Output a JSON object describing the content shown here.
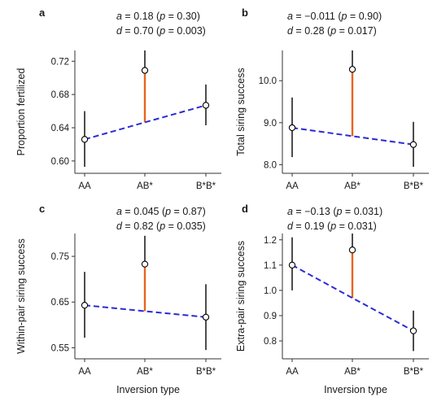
{
  "chart_data": [
    {
      "panel": "a",
      "type": "scatter",
      "stat_a": {
        "label": "a",
        "value": "0.18",
        "p": "0.30"
      },
      "stat_d": {
        "label": "d",
        "value": "0.70",
        "p": "0.003"
      },
      "ylabel": "Proportion fertilized",
      "xlabel": "",
      "categories": [
        "AA",
        "AB*",
        "B*B*"
      ],
      "yticks": [
        "0.60",
        "0.64",
        "0.68",
        "0.72"
      ],
      "ytick_values": [
        0.6,
        0.64,
        0.68,
        0.72
      ],
      "ylim": [
        0.593,
        0.733
      ],
      "points": [
        {
          "category": "AA",
          "mean": 0.626,
          "lo": 0.593,
          "hi": 0.66
        },
        {
          "category": "AB*",
          "mean": 0.709,
          "lo": 0.688,
          "hi": 0.733
        },
        {
          "category": "B*B*",
          "mean": 0.667,
          "lo": 0.643,
          "hi": 0.692
        }
      ],
      "additive_line": [
        0.626,
        0.6465,
        0.667
      ]
    },
    {
      "panel": "b",
      "type": "scatter",
      "stat_a": {
        "label": "a",
        "value": "−0.011",
        "p": "0.90"
      },
      "stat_d": {
        "label": "d",
        "value": "0.28",
        "p": "0.017"
      },
      "ylabel": "Total siring success",
      "xlabel": "",
      "categories": [
        "AA",
        "AB*",
        "B*B*"
      ],
      "yticks": [
        "8.0",
        "9.0",
        "10.0"
      ],
      "ytick_values": [
        8.0,
        9.0,
        10.0
      ],
      "ylim": [
        7.95,
        10.72
      ],
      "points": [
        {
          "category": "AA",
          "mean": 8.88,
          "lo": 8.18,
          "hi": 9.6
        },
        {
          "category": "AB*",
          "mean": 10.27,
          "lo": 9.83,
          "hi": 10.72
        },
        {
          "category": "B*B*",
          "mean": 8.48,
          "lo": 7.95,
          "hi": 9.02
        }
      ],
      "additive_line": [
        8.88,
        8.68,
        8.48
      ]
    },
    {
      "panel": "c",
      "type": "scatter",
      "stat_a": {
        "label": "a",
        "value": "0.045",
        "p": "0.87"
      },
      "stat_d": {
        "label": "d",
        "value": "0.82",
        "p": "0.035"
      },
      "ylabel": "Within-pair siring success",
      "xlabel": "Inversion type",
      "categories": [
        "AA",
        "AB*",
        "B*B*"
      ],
      "yticks": [
        "0.55",
        "0.65",
        "0.75"
      ],
      "ytick_values": [
        0.55,
        0.65,
        0.75
      ],
      "ylim": [
        0.54,
        0.8
      ],
      "points": [
        {
          "category": "AA",
          "mean": 0.643,
          "lo": 0.572,
          "hi": 0.716
        },
        {
          "category": "AB*",
          "mean": 0.733,
          "lo": 0.683,
          "hi": 0.795
        },
        {
          "category": "B*B*",
          "mean": 0.617,
          "lo": 0.545,
          "hi": 0.689
        }
      ],
      "additive_line": [
        0.643,
        0.63,
        0.617
      ]
    },
    {
      "panel": "d",
      "type": "scatter",
      "stat_a": {
        "label": "a",
        "value": "−0.13",
        "p": "0.031"
      },
      "stat_d": {
        "label": "d",
        "value": "0.19",
        "p": "0.031"
      },
      "ylabel": "Extra-pair siring success",
      "xlabel": "Inversion type",
      "categories": [
        "AA",
        "AB*",
        "B*B*"
      ],
      "yticks": [
        "0.8",
        "0.9",
        "1.0",
        "1.1",
        "1.2"
      ],
      "ytick_values": [
        0.8,
        0.9,
        1.0,
        1.1,
        1.2
      ],
      "ylim": [
        0.755,
        1.225
      ],
      "points": [
        {
          "category": "AA",
          "mean": 1.1,
          "lo": 1.0,
          "hi": 1.21
        },
        {
          "category": "AB*",
          "mean": 1.16,
          "lo": 1.08,
          "hi": 1.225
        },
        {
          "category": "B*B*",
          "mean": 0.84,
          "lo": 0.76,
          "hi": 0.92
        }
      ],
      "additive_line": [
        1.1,
        0.97,
        0.84
      ]
    }
  ],
  "colors": {
    "trend": "#2b2bd6",
    "deviation": "#e8641e",
    "interval": "#000000",
    "point_fill": "#ffffff"
  }
}
